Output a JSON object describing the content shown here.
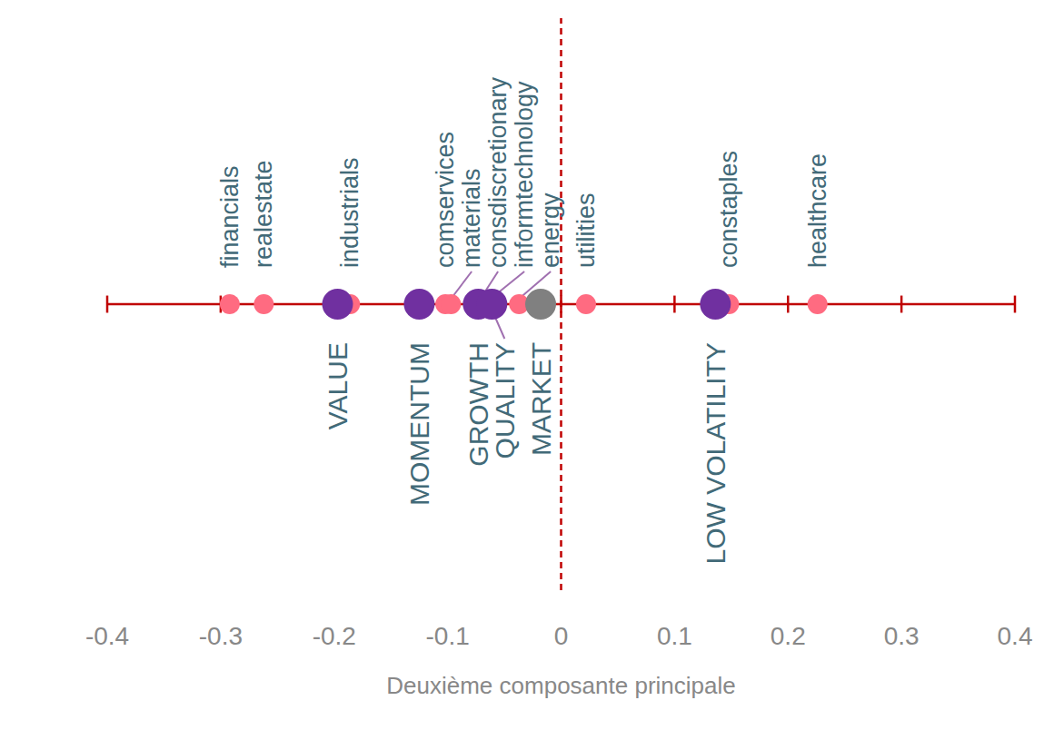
{
  "chart_data": {
    "type": "scatter",
    "x_label": "Deuxième composante principale",
    "xlim": [
      -0.4,
      0.4
    ],
    "xticks": [
      -0.4,
      -0.3,
      -0.2,
      -0.1,
      0,
      0.1,
      0.2,
      0.3,
      0.4
    ],
    "reference_lines": [
      {
        "x": 0,
        "color": "#c00000",
        "line_style": "dashed"
      }
    ],
    "series": [
      {
        "color": "#ff6b81",
        "marker": "small",
        "labels": [
          "financials",
          "realestate",
          "industrials",
          "comservices",
          "materials",
          "consdiscretionary",
          "informtechnology",
          "energy",
          "utilities",
          "constaples",
          "healthcare"
        ],
        "x": [
          -0.292,
          -0.262,
          -0.186,
          -0.102,
          -0.097,
          -0.071,
          -0.062,
          -0.037,
          0.022,
          0.148,
          0.226
        ]
      },
      {
        "color": "#7030a0",
        "marker": "large",
        "labels": [
          "VALUE",
          "MOMENTUM",
          "GROWTH",
          "QUALITY",
          "LOW VOLATILITY"
        ],
        "x": [
          -0.197,
          -0.125,
          -0.073,
          -0.061,
          0.136
        ]
      },
      {
        "color": "#808080",
        "marker": "large",
        "labels": [
          "MARKET"
        ],
        "x": [
          -0.018
        ]
      }
    ]
  }
}
